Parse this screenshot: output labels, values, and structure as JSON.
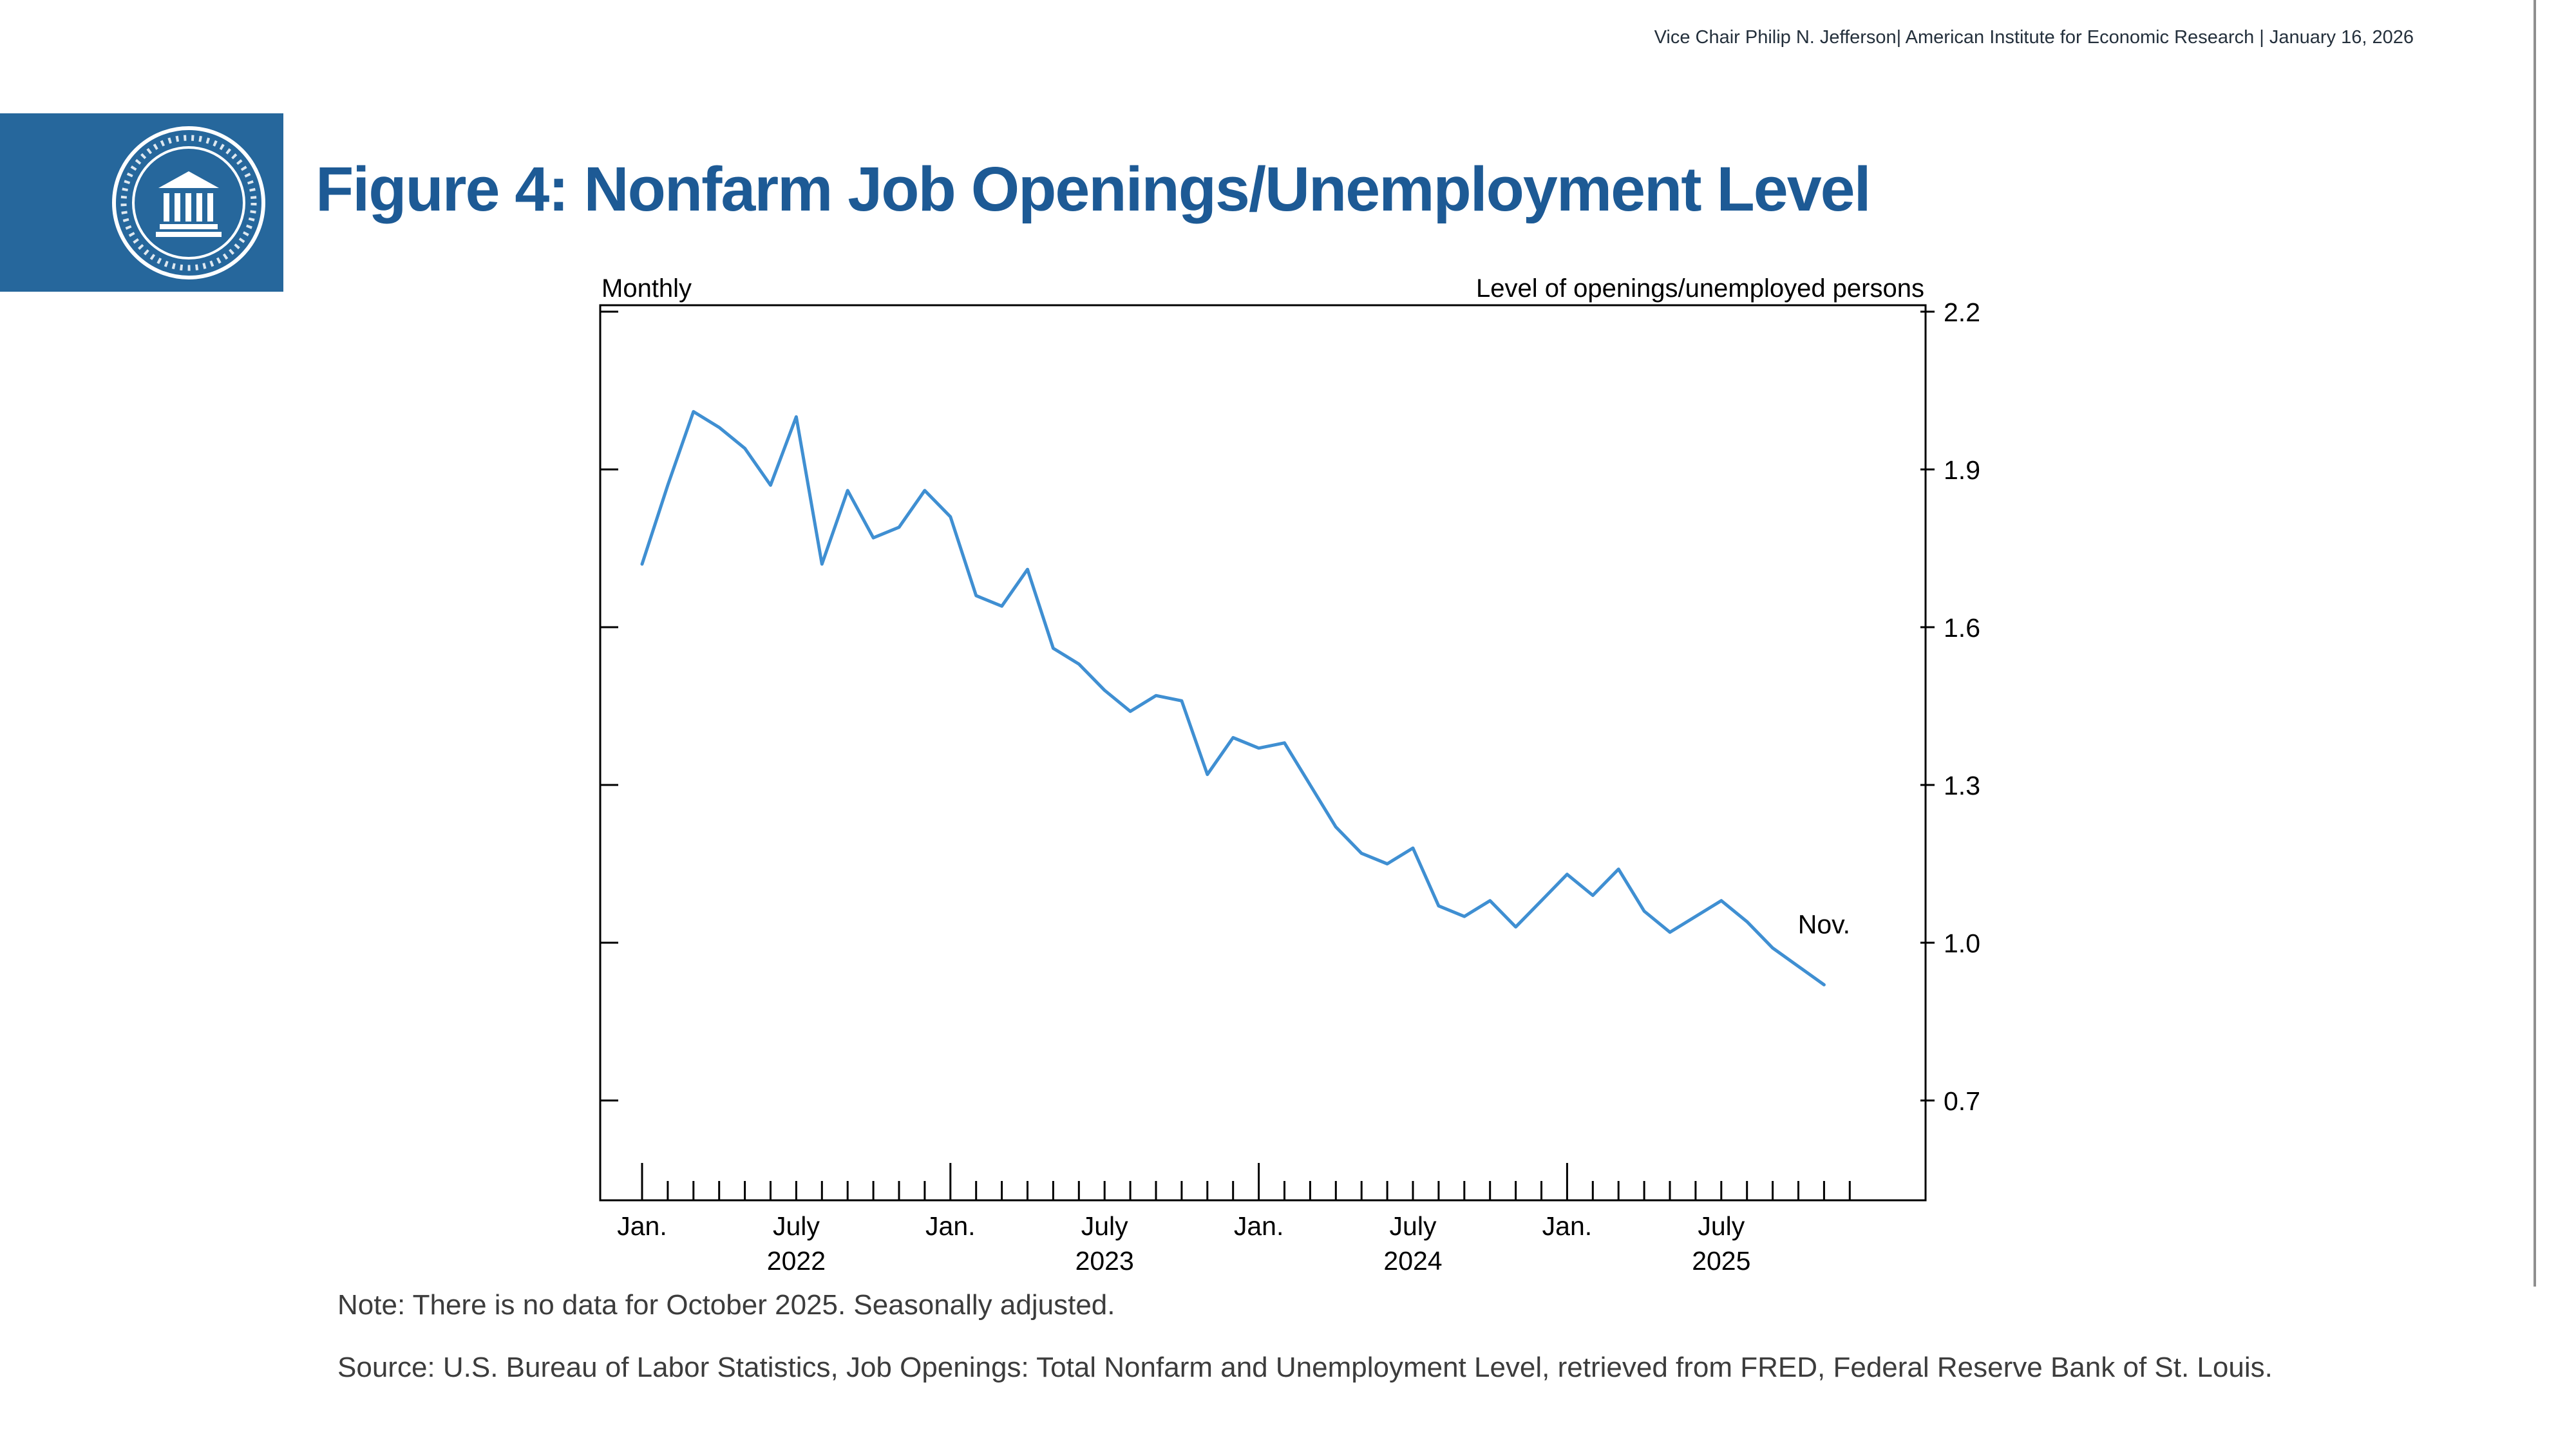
{
  "header": {
    "credit": "Vice Chair Philip N. Jefferson| American Institute for Economic Research | January 16, 2026"
  },
  "logo": {
    "icon": "federal-reserve-seal",
    "background_color": "#26679c"
  },
  "title": "Figure 4: Nonfarm Job Openings/Unemployment Level",
  "colors": {
    "title_blue": "#1d5a95",
    "line_blue": "#3f8fd2"
  },
  "chart_data": {
    "type": "line",
    "title": "Figure 4: Nonfarm Job Openings/Unemployment Level",
    "frequency_label": "Monthly",
    "unit_label": "Level of openings/unemployed persons",
    "line_color": "#3f8fd2",
    "grid": false,
    "legend": "none",
    "ylim": [
      0.51,
      2.21
    ],
    "yticks": [
      "2.2",
      "1.9",
      "1.6",
      "1.3",
      "1.0",
      "0.7"
    ],
    "x": [
      "2022-01",
      "2022-02",
      "2022-03",
      "2022-04",
      "2022-05",
      "2022-06",
      "2022-07",
      "2022-08",
      "2022-09",
      "2022-10",
      "2022-11",
      "2022-12",
      "2023-01",
      "2023-02",
      "2023-03",
      "2023-04",
      "2023-05",
      "2023-06",
      "2023-07",
      "2023-08",
      "2023-09",
      "2023-10",
      "2023-11",
      "2023-12",
      "2024-01",
      "2024-02",
      "2024-03",
      "2024-04",
      "2024-05",
      "2024-06",
      "2024-07",
      "2024-08",
      "2024-09",
      "2024-10",
      "2024-11",
      "2024-12",
      "2025-01",
      "2025-02",
      "2025-03",
      "2025-04",
      "2025-05",
      "2025-06",
      "2025-07",
      "2025-08",
      "2025-09",
      "2025-10",
      "2025-11"
    ],
    "series": [
      {
        "name": "Level of openings/unemployed persons",
        "values": [
          1.72,
          1.87,
          2.01,
          1.98,
          1.94,
          1.87,
          2.0,
          1.72,
          1.86,
          1.77,
          1.79,
          1.86,
          1.81,
          1.66,
          1.64,
          1.71,
          1.56,
          1.53,
          1.48,
          1.44,
          1.47,
          1.46,
          1.32,
          1.39,
          1.37,
          1.38,
          1.3,
          1.22,
          1.17,
          1.15,
          1.18,
          1.07,
          1.05,
          1.08,
          1.03,
          1.08,
          1.13,
          1.09,
          1.14,
          1.06,
          1.02,
          1.05,
          1.08,
          1.04,
          0.99,
          null,
          0.92
        ]
      }
    ],
    "xticks": [
      {
        "label": "Jan.",
        "year": "",
        "month_index": 0
      },
      {
        "label": "July",
        "year": "2022",
        "month_index": 6
      },
      {
        "label": "Jan.",
        "year": "",
        "month_index": 12
      },
      {
        "label": "July",
        "year": "2023",
        "month_index": 18
      },
      {
        "label": "Jan.",
        "year": "",
        "month_index": 24
      },
      {
        "label": "July",
        "year": "2024",
        "month_index": 30
      },
      {
        "label": "Jan.",
        "year": "",
        "month_index": 36
      },
      {
        "label": "July",
        "year": "2025",
        "month_index": 42
      }
    ],
    "annotation": {
      "label": "Nov.",
      "x": "2025-11",
      "month_index": 46,
      "value": 0.92
    },
    "missing_data": [
      "2025-10"
    ]
  },
  "notes": {
    "note": "Note: There is no data for October 2025. Seasonally adjusted.",
    "source": "Source: U.S. Bureau of Labor Statistics, Job Openings: Total Nonfarm and Unemployment Level, retrieved from FRED, Federal Reserve Bank of St. Louis."
  }
}
